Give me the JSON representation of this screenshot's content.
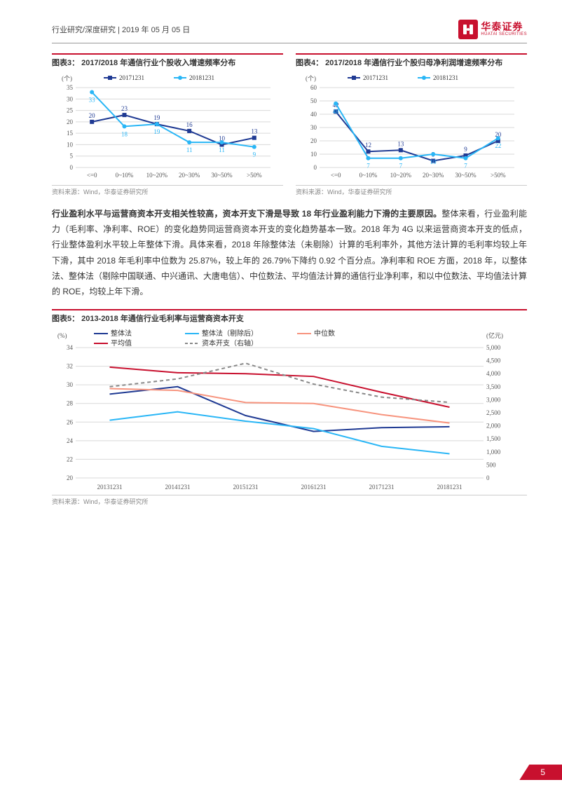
{
  "header": {
    "breadcrumb": "行业研究/深度研究 | 2019 年 05 月 05 日",
    "logo_cn": "华泰证券",
    "logo_en": "HUATAI SECURITIES"
  },
  "chart3": {
    "title": "图表3： 2017/2018 年通信行业个股收入增速频率分布",
    "type": "line",
    "ylabel": "(个)",
    "categories": [
      "<=0",
      "0~10%",
      "10~20%",
      "20~30%",
      "30~50%",
      ">50%"
    ],
    "series": [
      {
        "name": "20171231",
        "color": "#1f3a93",
        "marker": "square",
        "values": [
          20,
          23,
          19,
          16,
          10,
          13
        ]
      },
      {
        "name": "20181231",
        "color": "#29b6f6",
        "marker": "circle",
        "values": [
          33,
          18,
          19,
          11,
          11,
          9
        ]
      }
    ],
    "ylim": [
      0,
      35
    ],
    "ytick_step": 5,
    "grid_color": "#d9d9d9",
    "label_fontsize": 9
  },
  "chart4": {
    "title": "图表4： 2017/2018 年通信行业个股归母净利润增速频率分布",
    "type": "line",
    "ylabel": "(个)",
    "categories": [
      "<=0",
      "0~10%",
      "10~20%",
      "20~30%",
      "30~50%",
      ">50%"
    ],
    "series": [
      {
        "name": "20171231",
        "color": "#1f3a93",
        "marker": "square",
        "values": [
          42,
          12,
          13,
          5,
          9,
          20
        ]
      },
      {
        "name": "20181231",
        "color": "#29b6f6",
        "marker": "circle",
        "values": [
          48,
          7,
          7,
          10,
          7,
          22
        ]
      }
    ],
    "ylim": [
      0,
      60
    ],
    "ytick_step": 10,
    "grid_color": "#d9d9d9",
    "label_fontsize": 9
  },
  "body": {
    "bold_lead": "行业盈利水平与运营商资本开支相关性较高，资本开支下滑是导致 18 年行业盈利能力下滑的主要原因。",
    "para": "整体来看，行业盈利能力（毛利率、净利率、ROE）的变化趋势同运营商资本开支的变化趋势基本一致。2018 年为 4G 以来运营商资本开支的低点，行业整体盈利水平较上年整体下滑。具体来看，2018 年除整体法（未剔除）计算的毛利率外，其他方法计算的毛利率均较上年下滑，其中 2018 年毛利率中位数为 25.87%，较上年的 26.79%下降约 0.92 个百分点。净利率和 ROE 方面，2018 年，以整体法、整体法（剔除中国联通、中兴通讯、大唐电信）、中位数法、平均值法计算的通信行业净利率，和以中位数法、平均值法计算的 ROE，均较上年下滑。"
  },
  "chart5": {
    "title": "图表5： 2013-2018 年通信行业毛利率与运营商资本开支",
    "type": "multi-line-dual-axis",
    "y1label": "(%)",
    "y2label": "(亿元)",
    "categories": [
      "20131231",
      "20141231",
      "20151231",
      "20161231",
      "20171231",
      "20181231"
    ],
    "series": [
      {
        "name": "整体法",
        "color": "#1f3a93",
        "style": "solid",
        "axis": "left",
        "values": [
          29.0,
          29.8,
          26.7,
          25.0,
          25.4,
          25.5
        ]
      },
      {
        "name": "整体法（剔除后）",
        "color": "#29b6f6",
        "style": "solid",
        "axis": "left",
        "values": [
          26.2,
          27.1,
          26.1,
          25.3,
          23.4,
          22.6
        ]
      },
      {
        "name": "中位数",
        "color": "#f7947e",
        "style": "solid",
        "axis": "left",
        "values": [
          29.6,
          29.4,
          28.1,
          28.0,
          26.8,
          25.9
        ]
      },
      {
        "name": "平均值",
        "color": "#c8102e",
        "style": "solid",
        "axis": "left",
        "values": [
          31.9,
          31.3,
          31.2,
          30.9,
          29.2,
          27.6
        ]
      },
      {
        "name": "资本开支（右轴）",
        "color": "#888888",
        "style": "dashed",
        "axis": "right",
        "values": [
          3500,
          3800,
          4400,
          3600,
          3100,
          2900
        ]
      }
    ],
    "y1lim": [
      20,
      34
    ],
    "y1tick_step": 2,
    "y2lim": [
      0,
      5000
    ],
    "y2tick_step": 500,
    "grid_color": "#d9d9d9",
    "label_fontsize": 9
  },
  "source": "资料来源：Wind，华泰证券研究所",
  "page_number": "5"
}
